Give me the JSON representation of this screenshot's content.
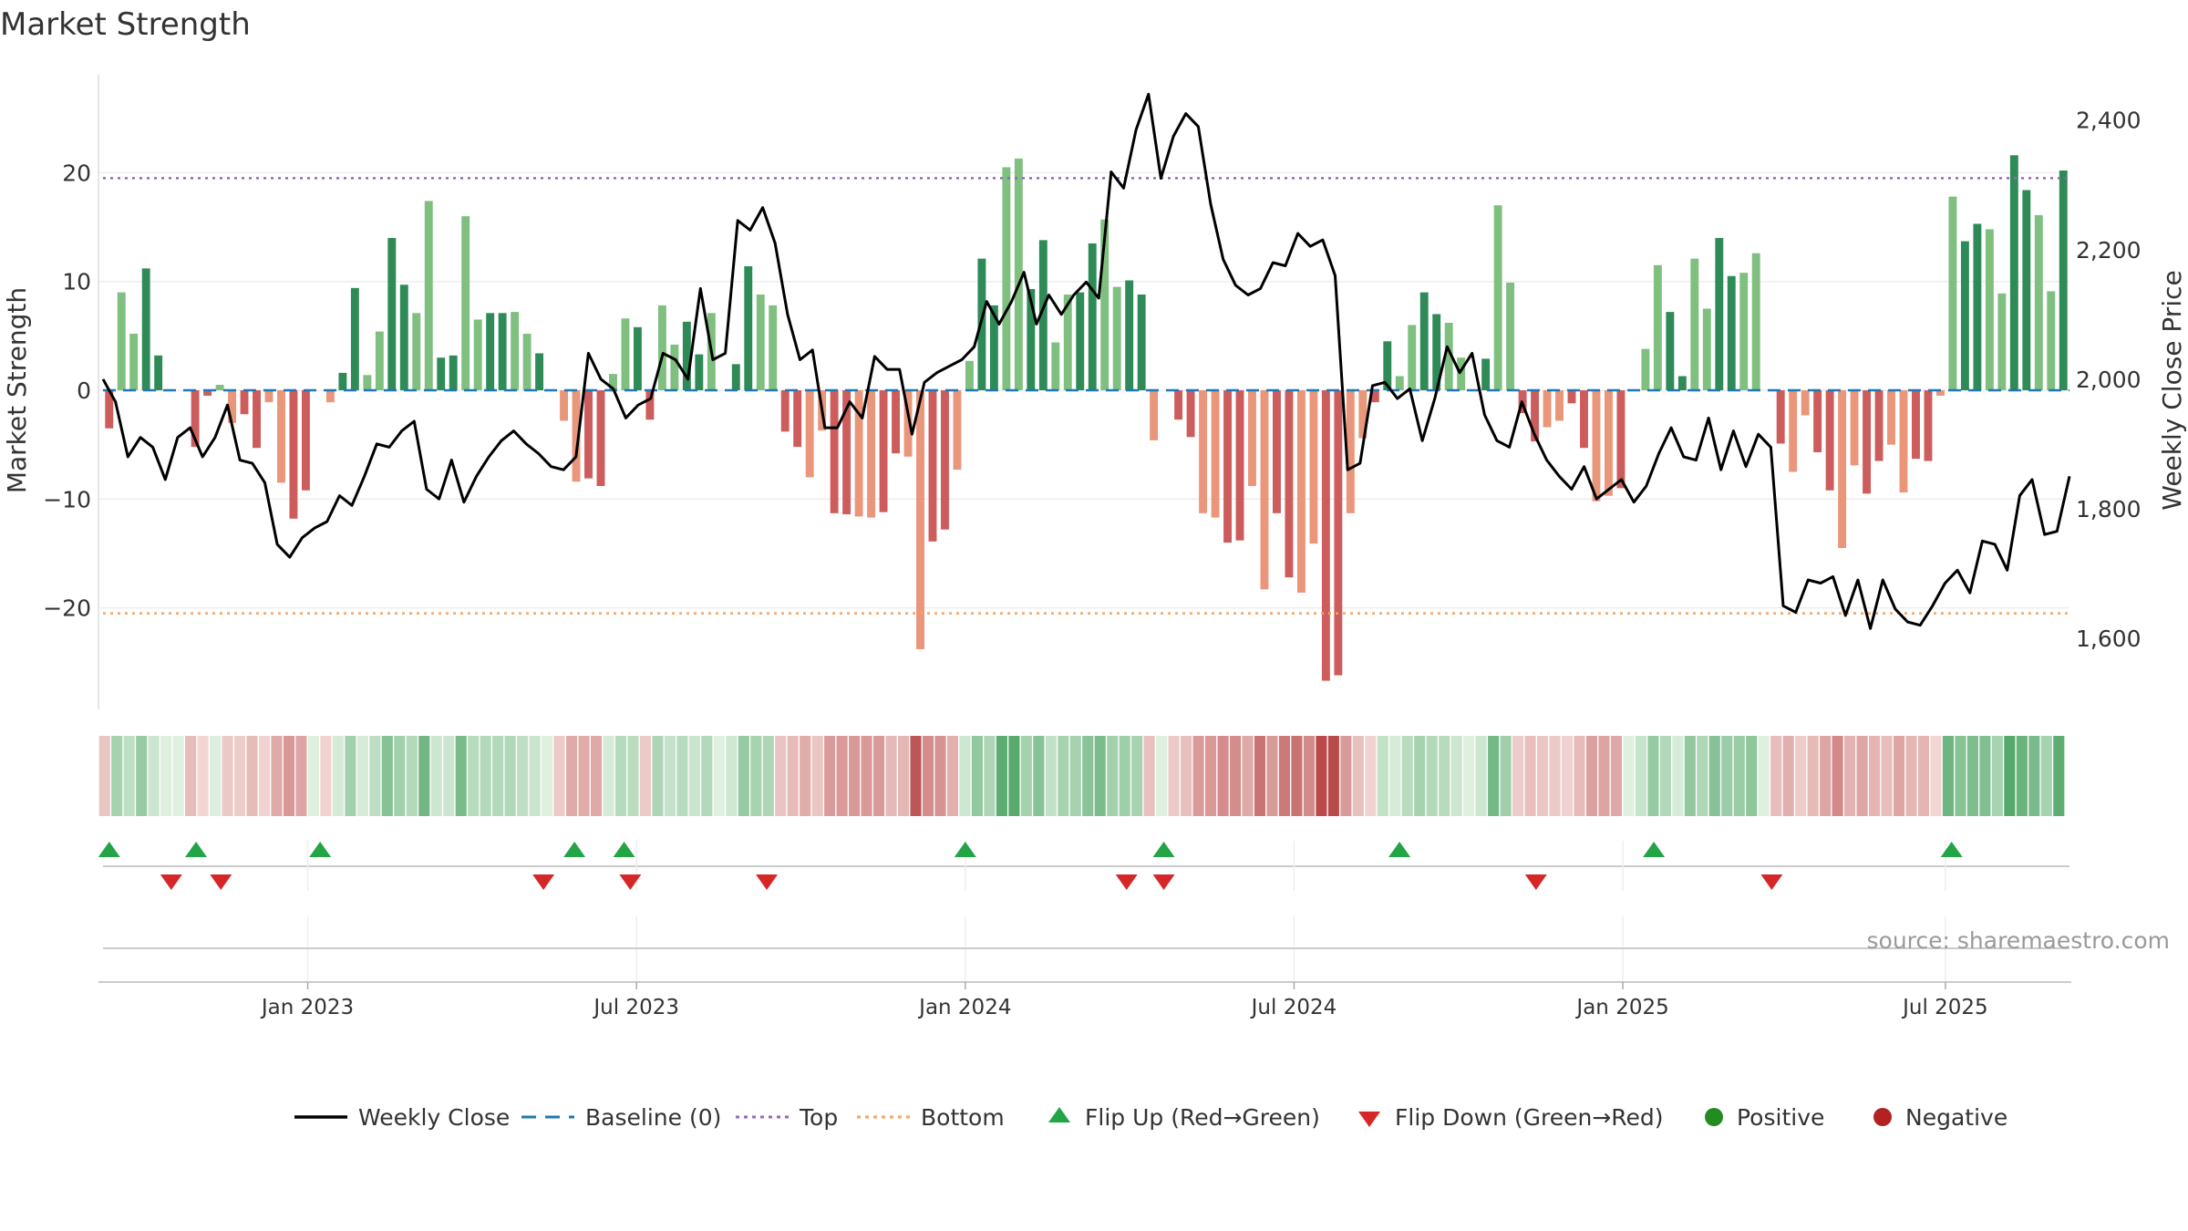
{
  "chart_data": {
    "type": "bar",
    "title": "Market Strength",
    "ylabel_left": "Market Strength",
    "ylabel_right": "Weekly Close Price",
    "source": "source: sharemaestro.com",
    "left_axis": {
      "ylim": [
        -29,
        29
      ],
      "ticks": [
        20,
        10,
        0,
        -10,
        -20
      ],
      "tick_labels": [
        "20",
        "10",
        "0",
        "−10",
        "−20"
      ]
    },
    "right_axis": {
      "ylim": [
        1490,
        2470
      ],
      "ticks": [
        2400,
        2200,
        2000,
        1800,
        1600
      ],
      "tick_labels": [
        "2,400",
        "2,200",
        "2,000",
        "1,800",
        "1,600"
      ]
    },
    "top_threshold": 19.5,
    "bottom_threshold": -20.5,
    "x_range": [
      2022.57,
      2025.74
    ],
    "x_ticks": [
      {
        "x": 2022.9,
        "label": "Jan 2023"
      },
      {
        "x": 2023.43,
        "label": "Jul 2023"
      },
      {
        "x": 2023.96,
        "label": "Jan 2024"
      },
      {
        "x": 2024.49,
        "label": "Jul 2024"
      },
      {
        "x": 2025.02,
        "label": "Jan 2025"
      },
      {
        "x": 2025.54,
        "label": "Jul 2025"
      }
    ],
    "strength": [
      -3.5,
      9,
      5.2,
      11.2,
      3.2,
      0,
      0,
      -5.2,
      -0.5,
      0.5,
      -3,
      -2.2,
      -5.3,
      -1.1,
      -8.5,
      -11.8,
      -9.2,
      0,
      -1.1,
      1.6,
      9.4,
      1.4,
      5.4,
      14,
      9.7,
      7.1,
      17.4,
      3,
      3.2,
      16,
      6.5,
      7.1,
      7.1,
      7.2,
      5.2,
      3.4,
      0,
      -2.8,
      -8.4,
      -8.1,
      -8.8,
      1.5,
      6.6,
      5.8,
      -2.7,
      7.8,
      4.2,
      6.3,
      3.3,
      7.1,
      0,
      2.4,
      11.4,
      8.8,
      7.8,
      -3.8,
      -5.2,
      -8,
      -3.7,
      -11.3,
      -11.4,
      -11.6,
      -11.7,
      -11.2,
      -5.8,
      -6.1,
      -23.8,
      -13.9,
      -12.8,
      -7.3,
      2.7,
      12.1,
      7.8,
      20.5,
      21.3,
      9.3,
      13.8,
      4.4,
      8.8,
      9,
      13.5,
      15.7,
      9.5,
      10.1,
      8.8,
      -4.6,
      0,
      -2.7,
      -4.3,
      -11.3,
      -11.7,
      -14,
      -13.8,
      -8.8,
      -18.3,
      -11.3,
      -17.2,
      -18.6,
      -14.1,
      -26.7,
      -26.2,
      -11.3,
      -4.4,
      -1.1,
      4.5,
      1.3,
      6,
      9,
      7,
      6.2,
      3,
      0,
      2.9,
      17,
      9.9,
      -2.1,
      -4.7,
      -3.4,
      -2.8,
      -1.2,
      -5.3,
      -10.2,
      -9.7,
      -9,
      0,
      3.8,
      11.5,
      7.2,
      1.3,
      12.1,
      7.5,
      14,
      10.5,
      10.8,
      12.6,
      0,
      -4.9,
      -7.5,
      -2.3,
      -5.7,
      -9.2,
      -14.5,
      -6.9,
      -9.5,
      -6.5,
      -5,
      -9.4,
      -6.3,
      -6.5,
      -0.5,
      17.8,
      13.7,
      15.3,
      14.8,
      8.9,
      21.6,
      18.4,
      16.1,
      9.1,
      20.2
    ],
    "series": [
      {
        "name": "Weekly Close",
        "values": [
          2000,
          1965,
          1880,
          1910,
          1895,
          1845,
          1910,
          1925,
          1880,
          1910,
          1960,
          1875,
          1870,
          1840,
          1745,
          1725,
          1755,
          1770,
          1780,
          1820,
          1805,
          1850,
          1900,
          1895,
          1920,
          1935,
          1830,
          1815,
          1875,
          1810,
          1850,
          1880,
          1905,
          1920,
          1900,
          1885,
          1865,
          1860,
          1880,
          2040,
          2000,
          1985,
          1940,
          1960,
          1970,
          2040,
          2030,
          2000,
          2140,
          2030,
          2040,
          2245,
          2230,
          2265,
          2210,
          2100,
          2030,
          2045,
          1925,
          1925,
          1965,
          1940,
          2035,
          2015,
          2015,
          1915,
          1995,
          2010,
          2020,
          2030,
          2050,
          2120,
          2085,
          2120,
          2165,
          2085,
          2130,
          2100,
          2130,
          2150,
          2125,
          2320,
          2295,
          2385,
          2440,
          2310,
          2375,
          2410,
          2390,
          2270,
          2185,
          2145,
          2130,
          2140,
          2180,
          2175,
          2225,
          2205,
          2215,
          2160,
          1860,
          1870,
          1990,
          1995,
          1970,
          1985,
          1905,
          1970,
          2050,
          2010,
          2040,
          1945,
          1905,
          1895,
          1965,
          1915,
          1875,
          1850,
          1830,
          1865,
          1815,
          1830,
          1845,
          1810,
          1835,
          1885,
          1925,
          1880,
          1875,
          1940,
          1860,
          1920,
          1865,
          1915,
          1895,
          1650,
          1640,
          1690,
          1685,
          1695,
          1635,
          1690,
          1615,
          1690,
          1645,
          1625,
          1620,
          1650,
          1685,
          1705,
          1670,
          1750,
          1745,
          1705,
          1820,
          1845,
          1760,
          1765,
          1850
        ]
      }
    ],
    "flips_up": [
      2022.58,
      2022.72,
      2022.92,
      2023.33,
      2023.41,
      2023.96,
      2024.28,
      2024.66,
      2025.07,
      2025.55
    ],
    "flips_down": [
      2022.68,
      2022.76,
      2023.28,
      2023.42,
      2023.64,
      2024.22,
      2024.28,
      2024.88,
      2025.26
    ],
    "legend": [
      {
        "label": "Weekly Close",
        "kind": "line",
        "color": "#000000"
      },
      {
        "label": "Baseline (0)",
        "kind": "dash",
        "color": "#1f77b4"
      },
      {
        "label": "Top",
        "kind": "dot",
        "color": "#9467bd"
      },
      {
        "label": "Bottom",
        "kind": "dot",
        "color": "#f4a460"
      },
      {
        "label": "Flip Up (Red→Green)",
        "kind": "tri-up",
        "color": "#22a447"
      },
      {
        "label": "Flip Down (Green→Red)",
        "kind": "tri-down",
        "color": "#d62728"
      },
      {
        "label": "Positive",
        "kind": "circle",
        "color": "#228b22"
      },
      {
        "label": "Negative",
        "kind": "circle",
        "color": "#b22222"
      }
    ],
    "colors": {
      "pos_strong": "#2e8b57",
      "pos_weak": "#7fbf7f",
      "neg_strong": "#cd5c5c",
      "neg_weak": "#e9967a",
      "price": "#000000",
      "top": "#9467bd",
      "bottom": "#f4a460",
      "baseline": "#1f77b4",
      "flip_up": "#22a447",
      "flip_down": "#d62728"
    }
  }
}
